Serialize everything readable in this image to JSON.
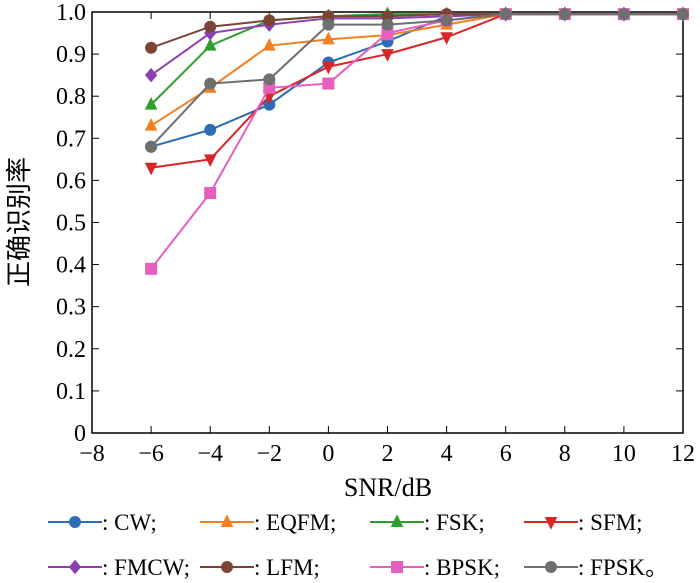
{
  "chart_data": {
    "type": "line",
    "title": "",
    "xlabel": "SNR/dB",
    "ylabel": "正确识别率",
    "xlim": [
      -8,
      12
    ],
    "ylim": [
      0,
      1.0
    ],
    "xticks": [
      -8,
      -6,
      -4,
      -2,
      0,
      2,
      4,
      6,
      8,
      10,
      12
    ],
    "yticks": [
      0,
      0.1,
      0.2,
      0.3,
      0.4,
      0.5,
      0.6,
      0.7,
      0.8,
      0.9,
      1.0
    ],
    "xtick_labels": [
      "−8",
      "−6",
      "−4",
      "−2",
      "0",
      "2",
      "4",
      "6",
      "8",
      "10",
      "12"
    ],
    "ytick_labels": [
      "0",
      "0.1",
      "0.2",
      "0.3",
      "0.4",
      "0.5",
      "0.6",
      "0.7",
      "0.8",
      "0.9",
      "1.0"
    ],
    "grid": false,
    "legend_position": "bottom",
    "x": [
      -6,
      -4,
      -2,
      0,
      2,
      4,
      6,
      8,
      10,
      12
    ],
    "series": [
      {
        "name": ": CW;",
        "color": "#2e6db4",
        "marker": "circle",
        "values": [
          0.68,
          0.72,
          0.78,
          0.88,
          0.93,
          0.99,
          0.995,
          0.995,
          0.995,
          0.995
        ]
      },
      {
        "name": ": EQFM;",
        "color": "#f47f20",
        "marker": "triangle-up",
        "values": [
          0.73,
          0.82,
          0.92,
          0.935,
          0.945,
          0.97,
          0.995,
          0.995,
          0.995,
          0.995
        ]
      },
      {
        "name": ": FSK;",
        "color": "#2ca02c",
        "marker": "triangle-up",
        "values": [
          0.78,
          0.92,
          0.98,
          0.99,
          0.995,
          0.995,
          0.995,
          0.995,
          0.995,
          0.995
        ]
      },
      {
        "name": ": SFM;",
        "color": "#d62728",
        "marker": "triangle-down",
        "values": [
          0.63,
          0.65,
          0.8,
          0.87,
          0.9,
          0.94,
          0.995,
          0.995,
          0.995,
          0.995
        ]
      },
      {
        "name": ": FMCW;",
        "color": "#8c3fb0",
        "marker": "diamond",
        "values": [
          0.85,
          0.95,
          0.97,
          0.985,
          0.985,
          0.99,
          0.995,
          0.995,
          0.995,
          0.995
        ]
      },
      {
        "name": ": LFM;",
        "color": "#7b4536",
        "marker": "circle",
        "values": [
          0.915,
          0.965,
          0.98,
          0.99,
          0.99,
          0.995,
          0.995,
          0.995,
          0.995,
          0.995
        ]
      },
      {
        "name": ": BPSK;",
        "color": "#e55fbf",
        "marker": "square",
        "values": [
          0.39,
          0.57,
          0.82,
          0.83,
          0.95,
          0.98,
          0.995,
          0.995,
          0.995,
          0.995
        ]
      },
      {
        "name": ": FPSK。",
        "color": "#6f6f6f",
        "marker": "circle",
        "values": [
          0.68,
          0.83,
          0.84,
          0.97,
          0.97,
          0.98,
          0.995,
          0.995,
          0.995,
          0.995
        ]
      }
    ]
  }
}
